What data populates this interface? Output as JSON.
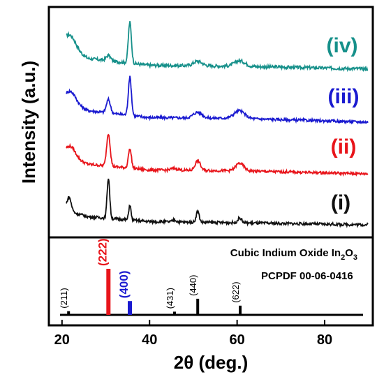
{
  "chart_data": [
    {
      "type": "line",
      "ylabel": "Intensity (a.u.)",
      "xlim": [
        17,
        91
      ],
      "series": [
        {
          "label": "(iv)",
          "color": "#16908a",
          "offset": 3,
          "peaks": [
            [
              21.8,
              0.35,
              1.4
            ],
            [
              30.6,
              0.12,
              0.5
            ],
            [
              35.5,
              0.9,
              0.35
            ],
            [
              51.0,
              0.1,
              1.0
            ],
            [
              60.6,
              0.12,
              1.2
            ]
          ],
          "baseline": [
            [
              21,
              0.45
            ],
            [
              26,
              0.25
            ],
            [
              40,
              0.1
            ],
            [
              60,
              0.08
            ],
            [
              90,
              0.02
            ]
          ]
        },
        {
          "label": "(iii)",
          "color": "#1a1ad0",
          "offset": 2,
          "peaks": [
            [
              22.0,
              0.3,
              1.2
            ],
            [
              30.6,
              0.35,
              0.45
            ],
            [
              35.5,
              1.0,
              0.35
            ],
            [
              51.0,
              0.15,
              1.0
            ],
            [
              60.5,
              0.2,
              1.2
            ]
          ],
          "baseline": [
            [
              21,
              0.55
            ],
            [
              26,
              0.3
            ],
            [
              40,
              0.12
            ],
            [
              60,
              0.1
            ],
            [
              90,
              0.0
            ]
          ]
        },
        {
          "label": "(ii)",
          "color": "#e8141a",
          "offset": 1,
          "peaks": [
            [
              21.9,
              0.3,
              1.2
            ],
            [
              30.6,
              0.85,
              0.4
            ],
            [
              35.5,
              0.5,
              0.35
            ],
            [
              45.7,
              0.05,
              0.8
            ],
            [
              51.0,
              0.25,
              0.6
            ],
            [
              60.6,
              0.2,
              0.9
            ]
          ],
          "baseline": [
            [
              21,
              0.45
            ],
            [
              26,
              0.25
            ],
            [
              40,
              0.1
            ],
            [
              60,
              0.08
            ],
            [
              90,
              0.0
            ]
          ]
        },
        {
          "label": "(i)",
          "color": "#111111",
          "offset": 0,
          "peaks": [
            [
              21.6,
              0.35,
              0.5
            ],
            [
              30.6,
              1.0,
              0.3
            ],
            [
              35.5,
              0.38,
              0.25
            ],
            [
              45.7,
              0.05,
              0.4
            ],
            [
              51.0,
              0.27,
              0.35
            ],
            [
              60.6,
              0.12,
              0.45
            ]
          ],
          "baseline": [
            [
              21,
              0.35
            ],
            [
              26,
              0.2
            ],
            [
              40,
              0.08
            ],
            [
              60,
              0.05
            ],
            [
              90,
              0.0
            ]
          ]
        }
      ]
    },
    {
      "type": "bar",
      "title": "Cubic Indium Oxide In2O3",
      "subtitle": "PCPDF 00-06-0416",
      "xlabel": "2θ (deg.)",
      "xlim": [
        17,
        91
      ],
      "xticks": [
        20,
        40,
        60,
        80
      ],
      "x": [
        21.5,
        30.6,
        35.5,
        45.7,
        51.0,
        60.7
      ],
      "values": [
        8,
        100,
        30,
        7,
        35,
        20
      ],
      "labels": [
        "(211)",
        "(222)",
        "(400)",
        "(431)",
        "(440)",
        "(622)"
      ],
      "colors": [
        "#000000",
        "#e8141a",
        "#1a1ad0",
        "#000000",
        "#000000",
        "#000000"
      ]
    }
  ],
  "ref": {
    "title_main": "Cubic Indium Oxide In",
    "title_sub": "2",
    "title_mid": "O",
    "title_sub2": "3",
    "card": "PCPDF 00-06-0416"
  }
}
